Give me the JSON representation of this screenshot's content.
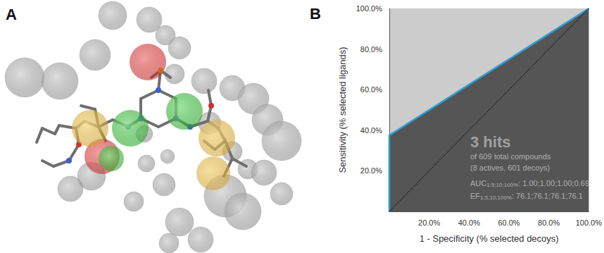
{
  "panel_labels": [
    "A",
    "B"
  ],
  "chart_data": {
    "type": "line",
    "xlabel": "1 - Specificity (% selected decoys)",
    "ylabel": "Sensitivity (% selected ligands)",
    "xlim": [
      0,
      100
    ],
    "ylim": [
      0,
      100
    ],
    "xticks": [
      {
        "value": 20,
        "label": "20.0%"
      },
      {
        "value": 40,
        "label": "40.0%"
      },
      {
        "value": 60,
        "label": "60.0%"
      },
      {
        "value": 80,
        "label": "80.0%"
      },
      {
        "value": 100,
        "label": "100.0%"
      }
    ],
    "yticks": [
      {
        "value": 20,
        "label": "20.0%"
      },
      {
        "value": 40,
        "label": "40.0%"
      },
      {
        "value": 60,
        "label": "60.0%"
      },
      {
        "value": 80,
        "label": "80.0%"
      },
      {
        "value": 100,
        "label": "100.0%"
      }
    ],
    "grid": false,
    "series": [
      {
        "type": "area",
        "x": [
          0,
          0,
          100
        ],
        "values": [
          0,
          37.5,
          100
        ],
        "color": "#2a9fd8",
        "line_style": "solid"
      },
      {
        "type": "line",
        "x": [
          0,
          100
        ],
        "values": [
          0,
          100
        ],
        "color": "#222222",
        "line_style": "dotted"
      }
    ],
    "annotations": [
      {
        "text": "3 hits"
      },
      {
        "text": "of 609 total compounds"
      },
      {
        "text": "(8 actives, 601 decoys)"
      },
      {
        "text": "AUC",
        "subscript": "1;5;10;100%",
        "value": ": 1.00;1.00;1.00;0.69"
      },
      {
        "text": "EF",
        "subscript": "1;5;10;100%",
        "value": ": 76.1;76.1;76.1;76.1"
      }
    ]
  }
}
